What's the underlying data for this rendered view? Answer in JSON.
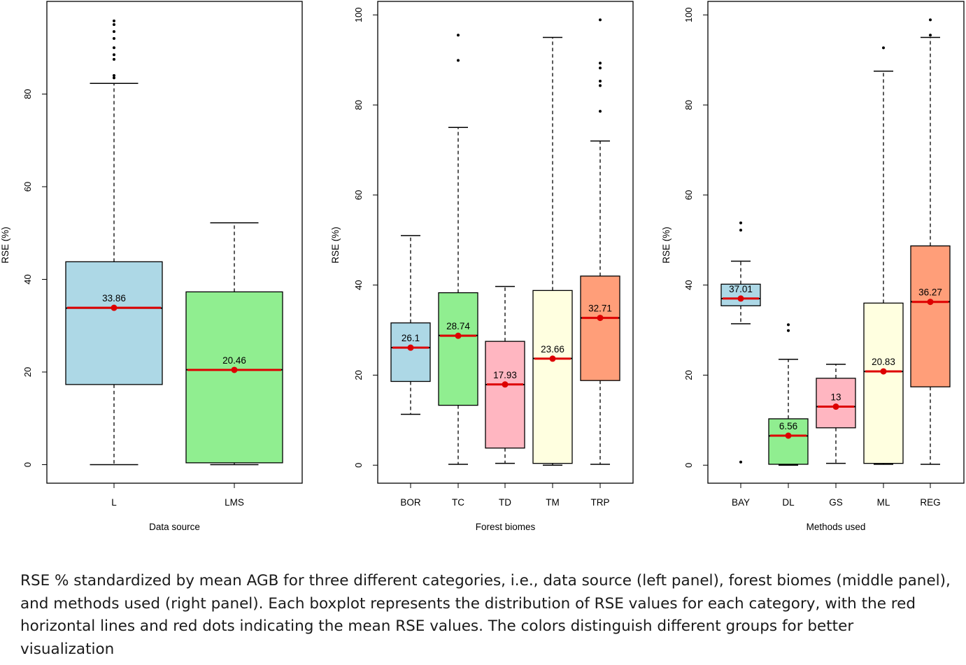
{
  "caption": "RSE % standardized by mean AGB for three different categories, i.e., data source (left panel), forest biomes (middle panel), and methods used (right panel). Each boxplot represents the distribution of RSE values for each category, with the red horizontal lines and red dots indicating the mean RSE values. The colors distinguish different groups for better visualization",
  "chart_data": [
    {
      "type": "box",
      "xlabel": "Data source",
      "ylabel": "RSE (%)",
      "ylim": [
        -4,
        100
      ],
      "yticks": [
        0,
        20,
        40,
        60,
        80
      ],
      "mean_color": "#dd0000",
      "boxes": [
        {
          "category": "L",
          "color": "#add8e6",
          "whisker_low": 0,
          "q1": 17.3,
          "median": 33.8,
          "q3": 43.8,
          "whisker_high": 82.3,
          "mean": 33.86,
          "mean_label": "33.86",
          "outliers": [
            83.5,
            84.0,
            87.5,
            88.5,
            90.0,
            92.0,
            93.5,
            95.0,
            95.8
          ]
        },
        {
          "category": "LMS",
          "color": "#90ee90",
          "whisker_low": 0,
          "q1": 0.4,
          "median": 20.5,
          "q3": 37.3,
          "whisker_high": 52.2,
          "mean": 20.46,
          "mean_label": "20.46",
          "outliers": []
        }
      ]
    },
    {
      "type": "box",
      "xlabel": "Forest biomes",
      "ylabel": "RSE (%)",
      "ylim": [
        -4,
        103
      ],
      "yticks": [
        0,
        20,
        40,
        60,
        80,
        100
      ],
      "mean_color": "#dd0000",
      "boxes": [
        {
          "category": "BOR",
          "color": "#add8e6",
          "whisker_low": 11.3,
          "q1": 18.6,
          "median": 26.1,
          "q3": 31.6,
          "whisker_high": 51.0,
          "mean": 26.1,
          "mean_label": "26.1",
          "outliers": []
        },
        {
          "category": "TC",
          "color": "#90ee90",
          "whisker_low": 0.2,
          "q1": 13.3,
          "median": 28.8,
          "q3": 38.3,
          "whisker_high": 75.0,
          "mean": 28.74,
          "mean_label": "28.74",
          "outliers": [
            89.9,
            95.5
          ]
        },
        {
          "category": "TD",
          "color": "#ffb6c1",
          "whisker_low": 0.4,
          "q1": 3.8,
          "median": 17.9,
          "q3": 27.5,
          "whisker_high": 39.7,
          "mean": 17.93,
          "mean_label": "17.93",
          "outliers": []
        },
        {
          "category": "TM",
          "color": "#ffffe0",
          "whisker_low": 0,
          "q1": 0.4,
          "median": 23.7,
          "q3": 38.8,
          "whisker_high": 95.0,
          "mean": 23.66,
          "mean_label": "23.66",
          "outliers": []
        },
        {
          "category": "TRP",
          "color": "#ff9e79",
          "whisker_low": 0.2,
          "q1": 18.8,
          "median": 32.7,
          "q3": 42.0,
          "whisker_high": 72.0,
          "mean": 32.71,
          "mean_label": "32.71",
          "outliers": [
            78.6,
            84.3,
            85.3,
            88.2,
            89.3,
            98.9
          ]
        }
      ]
    },
    {
      "type": "box",
      "xlabel": "Methods used",
      "ylabel": "RSE (%)",
      "ylim": [
        -4,
        103
      ],
      "yticks": [
        0,
        20,
        40,
        60,
        80,
        100
      ],
      "mean_color": "#dd0000",
      "boxes": [
        {
          "category": "BAY",
          "color": "#add8e6",
          "whisker_low": 31.4,
          "q1": 35.4,
          "median": 37.0,
          "q3": 40.2,
          "whisker_high": 45.3,
          "mean": 37.01,
          "mean_label": "37.01",
          "outliers": [
            0.7,
            52.2,
            53.8
          ]
        },
        {
          "category": "DL",
          "color": "#90ee90",
          "whisker_low": 0,
          "q1": 0.2,
          "median": 6.5,
          "q3": 10.3,
          "whisker_high": 23.5,
          "mean": 6.56,
          "mean_label": "6.56",
          "outliers": [
            29.9,
            31.2
          ]
        },
        {
          "category": "GS",
          "color": "#ffb6c1",
          "whisker_low": 0.4,
          "q1": 8.3,
          "median": 13.0,
          "q3": 19.3,
          "whisker_high": 22.4,
          "mean": 13,
          "mean_label": "13",
          "outliers": []
        },
        {
          "category": "ML",
          "color": "#ffffe0",
          "whisker_low": 0.2,
          "q1": 0.4,
          "median": 20.8,
          "q3": 36.0,
          "whisker_high": 87.5,
          "mean": 20.83,
          "mean_label": "20.83",
          "outliers": [
            92.7
          ]
        },
        {
          "category": "REG",
          "color": "#ff9e79",
          "whisker_low": 0.2,
          "q1": 17.4,
          "median": 36.3,
          "q3": 48.7,
          "whisker_high": 95.0,
          "mean": 36.27,
          "mean_label": "36.27",
          "outliers": [
            95.5,
            98.9
          ]
        }
      ]
    }
  ]
}
